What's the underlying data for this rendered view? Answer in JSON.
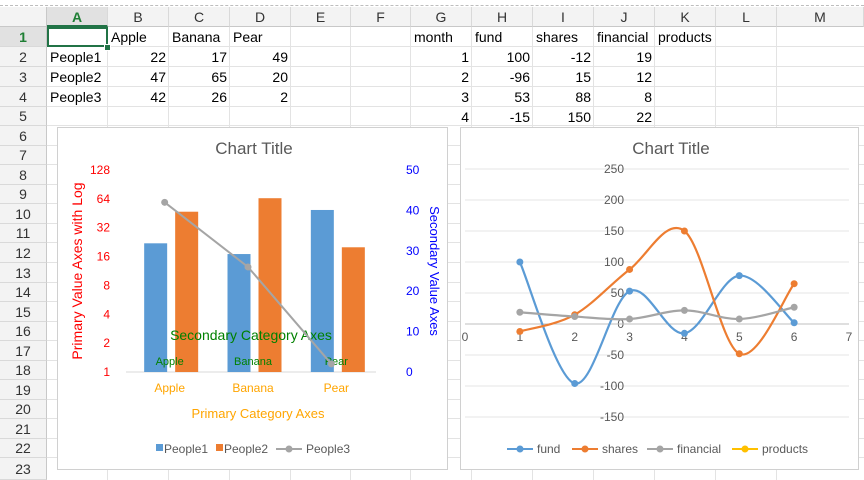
{
  "sheet": {
    "columns": [
      "A",
      "B",
      "C",
      "D",
      "E",
      "F",
      "G",
      "H",
      "I",
      "J",
      "K",
      "L",
      "M"
    ],
    "rows": [
      "1",
      "2",
      "3",
      "4",
      "5",
      "6",
      "7",
      "8",
      "9",
      "10",
      "11",
      "12",
      "13",
      "14",
      "15",
      "16",
      "17",
      "18",
      "19",
      "20",
      "21",
      "22",
      "23"
    ],
    "cells": {
      "B1": "Apple",
      "C1": "Banana",
      "D1": "Pear",
      "A2": "People1",
      "B2": "22",
      "C2": "17",
      "D2": "49",
      "A3": "People2",
      "B3": "47",
      "C3": "65",
      "D3": "20",
      "A4": "People3",
      "B4": "42",
      "C4": "26",
      "D4": "2",
      "G1": "month",
      "H1": "fund",
      "I1": "shares",
      "J1": "financial",
      "K1": "products",
      "G2": "1",
      "H2": "100",
      "I2": "-12",
      "J2": "19",
      "G3": "2",
      "H3": "-96",
      "I3": "15",
      "J3": "12",
      "G4": "3",
      "H4": "53",
      "I4": "88",
      "J4": "8",
      "G5": "4",
      "H5": "-15",
      "I5": "150",
      "J5": "22"
    }
  },
  "chart_data": [
    {
      "type": "bar",
      "title": "Chart Title",
      "categories": [
        "Apple",
        "Banana",
        "Pear"
      ],
      "series": [
        {
          "name": "People1",
          "values": [
            22,
            17,
            49
          ],
          "color": "#5b9bd5",
          "axis": "primary"
        },
        {
          "name": "People2",
          "values": [
            47,
            65,
            20
          ],
          "color": "#ed7d31",
          "axis": "primary"
        },
        {
          "name": "People3",
          "values": [
            42,
            26,
            2
          ],
          "color": "#a5a5a5",
          "axis": "secondary",
          "type": "line"
        }
      ],
      "primary_axis": {
        "label": "Primary Value Axes with Log",
        "scale": "log2",
        "ticks": [
          "1",
          "2",
          "4",
          "8",
          "16",
          "32",
          "64",
          "128"
        ],
        "color": "#ff0000"
      },
      "secondary_axis": {
        "label": "Secondary Value Axes",
        "ticks": [
          "0",
          "10",
          "20",
          "30",
          "40",
          "50"
        ],
        "ylim": [
          0,
          50
        ],
        "color": "#0000ff"
      },
      "primary_category_axis": {
        "label": "Primary Category Axes",
        "color": "#ffa500"
      },
      "secondary_category_axis": {
        "label": "Secondary Category Axes",
        "color": "#008000"
      },
      "legend": "bottom",
      "grid": false
    },
    {
      "type": "line",
      "title": "Chart Title",
      "x": [
        1,
        2,
        3,
        4
      ],
      "series": [
        {
          "name": "fund",
          "x": [
            1,
            2,
            3,
            4,
            5,
            6
          ],
          "values": [
            100,
            -96,
            53,
            -15,
            78,
            2
          ],
          "color": "#5b9bd5"
        },
        {
          "name": "shares",
          "x": [
            1,
            2,
            3,
            4,
            5,
            6
          ],
          "values": [
            -12,
            15,
            88,
            150,
            -48,
            65
          ],
          "color": "#ed7d31"
        },
        {
          "name": "financial",
          "x": [
            1,
            2,
            3,
            4,
            5,
            6
          ],
          "values": [
            19,
            12,
            8,
            22,
            8,
            27
          ],
          "color": "#a5a5a5"
        },
        {
          "name": "products",
          "x": [],
          "values": [],
          "color": "#ffc000"
        }
      ],
      "x_ticks": [
        "0",
        "1",
        "2",
        "3",
        "4",
        "5",
        "6",
        "7"
      ],
      "y_ticks": [
        "250",
        "200",
        "150",
        "100",
        "50",
        "0",
        "-50",
        "-100",
        "-150"
      ],
      "ylim": [
        -150,
        250
      ],
      "xlim": [
        0,
        7
      ],
      "grid": true,
      "legend": "bottom",
      "smooth": true
    }
  ]
}
